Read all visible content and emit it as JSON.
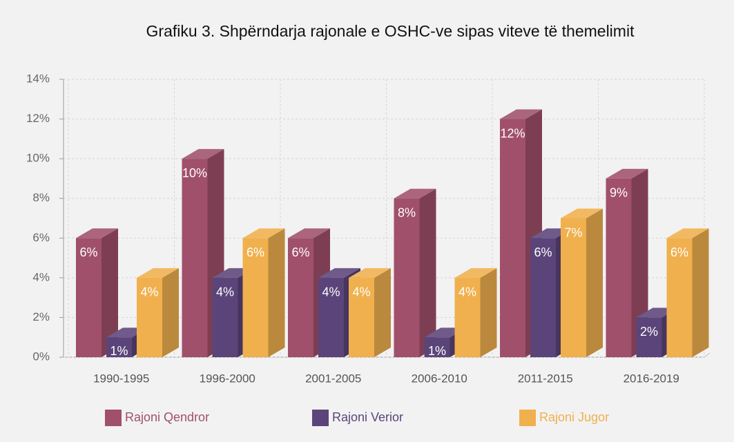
{
  "chart_data": {
    "type": "bar3d",
    "title": "Grafiku 3. Shpërndarja rajonale e OSHC-ve sipas viteve të themelimit",
    "categories": [
      "1990-1995",
      "1996-2000",
      "2001-2005",
      "2006-2010",
      "2011-2015",
      "2016-2019"
    ],
    "series": [
      {
        "name": "Rajoni Qendror",
        "color": "#a0506a",
        "values": [
          6,
          10,
          6,
          8,
          12,
          9
        ],
        "value_labels": [
          "6%",
          "10%",
          "6%",
          "8%",
          "12%",
          "9%"
        ]
      },
      {
        "name": "Rajoni Verior",
        "color": "#5b4479",
        "values": [
          1,
          4,
          4,
          1,
          6,
          2
        ],
        "value_labels": [
          "1%",
          "4%",
          "4%",
          "1%",
          "6%",
          "2%"
        ]
      },
      {
        "name": "Rajoni Jugor",
        "color": "#f0b04e",
        "values": [
          4,
          6,
          4,
          4,
          7,
          6
        ],
        "value_labels": [
          "4%",
          "6%",
          "4%",
          "4%",
          "7%",
          "6%"
        ]
      }
    ],
    "ylim": [
      0,
      14
    ],
    "yticks": [
      {
        "value": 0,
        "label": "0%"
      },
      {
        "value": 2,
        "label": "2%"
      },
      {
        "value": 4,
        "label": "4%"
      },
      {
        "value": 6,
        "label": "6%"
      },
      {
        "value": 8,
        "label": "8%"
      },
      {
        "value": 10,
        "label": "10%"
      },
      {
        "value": 12,
        "label": "12%"
      },
      {
        "value": 14,
        "label": "14%"
      }
    ],
    "grid": true
  }
}
